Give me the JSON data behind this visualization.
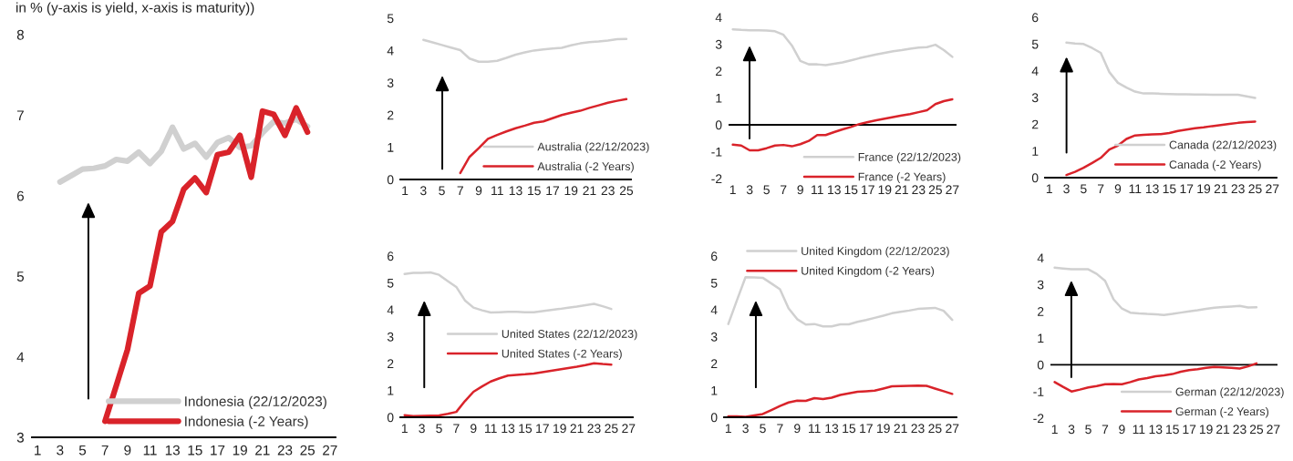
{
  "chart_data": [
    {
      "type": "line",
      "title": "in % (y-axis is yield, x-axis is maturity))",
      "xlim": [
        0.5,
        27.5
      ],
      "xticks": [
        1,
        3,
        5,
        7,
        9,
        11,
        13,
        15,
        17,
        19,
        21,
        23,
        25,
        27
      ],
      "ylim": [
        3,
        8
      ],
      "yticks": [
        3,
        4,
        5,
        6,
        7,
        8
      ],
      "legend": "bottom right",
      "series": [
        {
          "name": "Indonesia (22/12/2023)",
          "color": "#d0d0d0",
          "x": [
            3,
            4,
            5,
            6,
            7,
            8,
            9,
            10,
            11,
            12,
            13,
            14,
            15,
            16,
            17,
            18,
            19,
            20,
            21,
            22,
            23,
            24,
            25
          ],
          "values": [
            6.17,
            6.25,
            6.33,
            6.34,
            6.37,
            6.45,
            6.43,
            6.54,
            6.4,
            6.55,
            6.85,
            6.58,
            6.65,
            6.48,
            6.66,
            6.72,
            6.6,
            6.62,
            6.78,
            6.92,
            6.9,
            6.95,
            6.86
          ]
        },
        {
          "name": "Indonesia (-2 Years)",
          "color": "#d9232a",
          "x": [
            7,
            8,
            9,
            10,
            11,
            12,
            13,
            14,
            15,
            16,
            17,
            18,
            19,
            20,
            21,
            22,
            23,
            24,
            25
          ],
          "values": [
            3.2,
            3.64,
            4.09,
            4.79,
            4.88,
            5.55,
            5.68,
            6.08,
            6.22,
            6.04,
            6.51,
            6.54,
            6.75,
            6.23,
            7.05,
            7.01,
            6.75,
            7.09,
            6.79
          ]
        }
      ]
    },
    {
      "type": "line",
      "xlim": [
        0.5,
        25.5
      ],
      "xticks": [
        1,
        3,
        5,
        7,
        9,
        11,
        13,
        15,
        17,
        19,
        21,
        23,
        25
      ],
      "ylim": [
        0,
        5
      ],
      "yticks": [
        0,
        1,
        2,
        3,
        4,
        5
      ],
      "legend": "bottom right",
      "series": [
        {
          "name": "Australia (22/12/2023)",
          "color": "#d0d0d0",
          "x": [
            3,
            4,
            5,
            6,
            7,
            8,
            9,
            10,
            11,
            12,
            13,
            14,
            15,
            16,
            17,
            18,
            19,
            20,
            21,
            22,
            23,
            24,
            25
          ],
          "values": [
            4.33,
            4.25,
            4.17,
            4.09,
            4.01,
            3.75,
            3.65,
            3.65,
            3.68,
            3.77,
            3.87,
            3.94,
            4.0,
            4.03,
            4.06,
            4.08,
            4.16,
            4.22,
            4.26,
            4.28,
            4.31,
            4.35,
            4.36
          ]
        },
        {
          "name": "Australia (-2 Years)",
          "color": "#d9232a",
          "x": [
            7,
            8,
            9,
            10,
            11,
            12,
            13,
            14,
            15,
            16,
            17,
            18,
            19,
            20,
            21,
            22,
            23,
            24,
            25
          ],
          "values": [
            0.2,
            0.7,
            0.97,
            1.26,
            1.38,
            1.49,
            1.59,
            1.67,
            1.76,
            1.8,
            1.9,
            2.0,
            2.07,
            2.13,
            2.22,
            2.3,
            2.38,
            2.44,
            2.49
          ]
        }
      ]
    },
    {
      "type": "line",
      "x": [
        1,
        2,
        3,
        4,
        5,
        6,
        7,
        8,
        9,
        10,
        11,
        12,
        13,
        14,
        15,
        16,
        17,
        18,
        19,
        20,
        21,
        22,
        23,
        24,
        25,
        26,
        27
      ],
      "xlim": [
        0.5,
        27.5
      ],
      "xticks": [
        1,
        3,
        5,
        7,
        9,
        11,
        13,
        15,
        17,
        19,
        21,
        23,
        25,
        27
      ],
      "ylim": [
        -2,
        4
      ],
      "yticks": [
        -2,
        -1,
        0,
        1,
        2,
        3,
        4
      ],
      "legend": "bottom right",
      "series": [
        {
          "name": "France (22/12/2023)",
          "color": "#d0d0d0",
          "values": [
            3.55,
            3.53,
            3.52,
            3.52,
            3.51,
            3.48,
            3.35,
            2.95,
            2.38,
            2.25,
            2.25,
            2.22,
            2.27,
            2.32,
            2.4,
            2.48,
            2.55,
            2.62,
            2.68,
            2.74,
            2.78,
            2.83,
            2.87,
            2.89,
            2.98,
            2.78,
            2.53
          ]
        },
        {
          "name": "France (-2 Years)",
          "color": "#d9232a",
          "values": [
            -0.74,
            -0.77,
            -0.95,
            -0.95,
            -0.87,
            -0.77,
            -0.75,
            -0.8,
            -0.72,
            -0.6,
            -0.38,
            -0.38,
            -0.27,
            -0.17,
            -0.08,
            0.03,
            0.1,
            0.17,
            0.23,
            0.29,
            0.35,
            0.4,
            0.47,
            0.54,
            0.77,
            0.88,
            0.95
          ]
        }
      ]
    },
    {
      "type": "line",
      "x": [
        3,
        4,
        5,
        6,
        7,
        8,
        9,
        10,
        11,
        12,
        13,
        14,
        15,
        16,
        17,
        18,
        19,
        20,
        21,
        22,
        23,
        24,
        25
      ],
      "xlim": [
        0.5,
        27.5
      ],
      "xticks": [
        1,
        3,
        5,
        7,
        9,
        11,
        13,
        15,
        17,
        19,
        21,
        23,
        25,
        27
      ],
      "ylim": [
        0,
        6
      ],
      "yticks": [
        0,
        1,
        2,
        3,
        4,
        5,
        6
      ],
      "legend": "bottom right",
      "series": [
        {
          "name": "Canada (22/12/2023)",
          "color": "#d0d0d0",
          "values": [
            5.05,
            5.02,
            5.0,
            4.85,
            4.67,
            3.95,
            3.55,
            3.37,
            3.22,
            3.15,
            3.15,
            3.14,
            3.13,
            3.12,
            3.12,
            3.11,
            3.11,
            3.1,
            3.1,
            3.1,
            3.1,
            3.04,
            2.98
          ]
        },
        {
          "name": "Canada (-2 Years)",
          "color": "#d9232a",
          "values": [
            0.1,
            0.22,
            0.37,
            0.55,
            0.74,
            1.05,
            1.2,
            1.45,
            1.58,
            1.6,
            1.62,
            1.63,
            1.67,
            1.75,
            1.8,
            1.85,
            1.88,
            1.93,
            1.97,
            2.01,
            2.05,
            2.08,
            2.1
          ]
        }
      ]
    },
    {
      "type": "line",
      "x": [
        1,
        2,
        3,
        4,
        5,
        6,
        7,
        8,
        9,
        10,
        11,
        12,
        13,
        14,
        15,
        16,
        17,
        18,
        19,
        20,
        21,
        22,
        23,
        24,
        25
      ],
      "xlim": [
        0.5,
        27.5
      ],
      "xticks": [
        1,
        3,
        5,
        7,
        9,
        11,
        13,
        15,
        17,
        19,
        21,
        23,
        25,
        27
      ],
      "ylim": [
        0,
        6
      ],
      "yticks": [
        0,
        1,
        2,
        3,
        4,
        5,
        6
      ],
      "legend": "right",
      "series": [
        {
          "name": "United States (22/12/2023)",
          "color": "#d0d0d0",
          "values": [
            5.33,
            5.37,
            5.37,
            5.39,
            5.3,
            5.07,
            4.85,
            4.35,
            4.08,
            3.98,
            3.9,
            3.91,
            3.92,
            3.92,
            3.91,
            3.91,
            3.95,
            3.99,
            4.03,
            4.08,
            4.12,
            4.17,
            4.22,
            4.13,
            4.03
          ]
        },
        {
          "name": "United States (-2 Years)",
          "color": "#d9232a",
          "values": [
            0.08,
            0.04,
            0.05,
            0.06,
            0.07,
            0.13,
            0.2,
            0.6,
            0.95,
            1.15,
            1.33,
            1.45,
            1.55,
            1.58,
            1.6,
            1.63,
            1.68,
            1.73,
            1.78,
            1.83,
            1.88,
            1.94,
            2.01,
            1.98,
            1.96
          ]
        }
      ]
    },
    {
      "type": "line",
      "x": [
        1,
        2,
        3,
        4,
        5,
        6,
        7,
        8,
        9,
        10,
        11,
        12,
        13,
        14,
        15,
        16,
        17,
        18,
        19,
        20,
        21,
        22,
        23,
        24,
        25,
        26,
        27
      ],
      "xlim": [
        0.5,
        27.5
      ],
      "xticks": [
        1,
        3,
        5,
        7,
        9,
        11,
        13,
        15,
        17,
        19,
        21,
        23,
        25,
        27
      ],
      "ylim": [
        0,
        6
      ],
      "yticks": [
        0,
        1,
        2,
        3,
        4,
        5,
        6
      ],
      "legend": "top right",
      "series": [
        {
          "name": "United Kingdom (22/12/2023)",
          "color": "#d0d0d0",
          "values": [
            3.47,
            4.35,
            5.21,
            5.2,
            5.19,
            4.98,
            4.76,
            4.05,
            3.65,
            3.45,
            3.47,
            3.38,
            3.38,
            3.46,
            3.46,
            3.55,
            3.62,
            3.7,
            3.78,
            3.87,
            3.92,
            3.97,
            4.03,
            4.05,
            4.07,
            3.96,
            3.62
          ]
        },
        {
          "name": "United Kingdom (-2 Years)",
          "color": "#d9232a",
          "values": [
            0.03,
            0.03,
            0.02,
            0.07,
            0.12,
            0.27,
            0.42,
            0.55,
            0.62,
            0.61,
            0.71,
            0.68,
            0.73,
            0.83,
            0.89,
            0.95,
            0.97,
            0.99,
            1.07,
            1.15,
            1.16,
            1.17,
            1.18,
            1.17,
            1.07,
            0.97,
            0.87
          ]
        }
      ]
    },
    {
      "type": "line",
      "x": [
        1,
        2,
        3,
        4,
        5,
        6,
        7,
        8,
        9,
        10,
        11,
        12,
        13,
        14,
        15,
        16,
        17,
        18,
        19,
        20,
        21,
        22,
        23,
        24,
        25
      ],
      "xlim": [
        0.5,
        27.5
      ],
      "xticks": [
        1,
        3,
        5,
        7,
        9,
        11,
        13,
        15,
        17,
        19,
        21,
        23,
        25,
        27
      ],
      "ylim": [
        -2,
        4
      ],
      "yticks": [
        -2,
        -1,
        0,
        1,
        2,
        3,
        4
      ],
      "legend": "bottom right",
      "series": [
        {
          "name": "German (22/12/2023)",
          "color": "#d0d0d0",
          "values": [
            3.63,
            3.6,
            3.57,
            3.57,
            3.57,
            3.4,
            3.14,
            2.45,
            2.1,
            1.95,
            1.92,
            1.9,
            1.89,
            1.86,
            1.9,
            1.95,
            2.0,
            2.04,
            2.09,
            2.13,
            2.16,
            2.18,
            2.2,
            2.14,
            2.15
          ]
        },
        {
          "name": "German (-2 Years)",
          "color": "#d9232a",
          "values": [
            -0.65,
            -0.83,
            -1.0,
            -0.93,
            -0.85,
            -0.8,
            -0.73,
            -0.72,
            -0.73,
            -0.65,
            -0.55,
            -0.5,
            -0.43,
            -0.4,
            -0.35,
            -0.26,
            -0.2,
            -0.17,
            -0.12,
            -0.08,
            -0.1,
            -0.12,
            -0.14,
            -0.06,
            0.05
          ]
        }
      ]
    }
  ]
}
